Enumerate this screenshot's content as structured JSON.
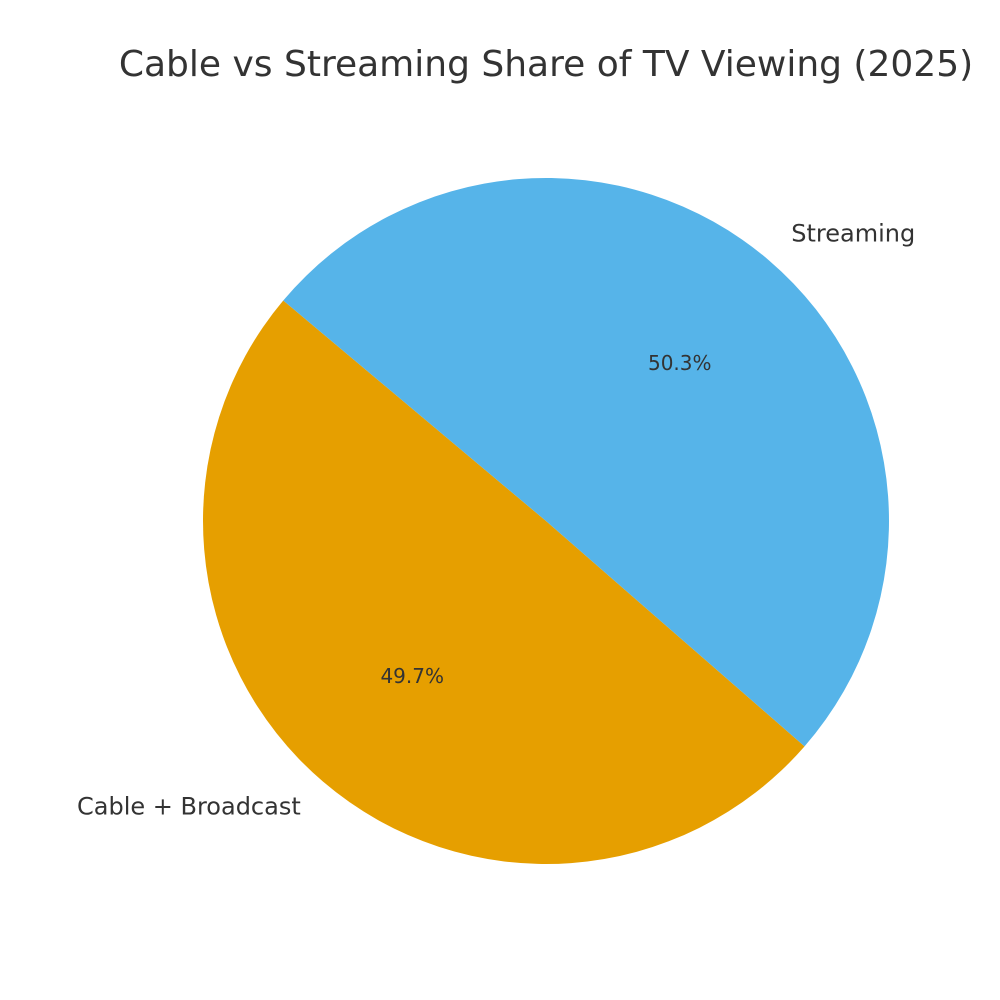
{
  "chart_data": {
    "type": "pie",
    "title": "Cable vs Streaming Share of TV Viewing (2025)",
    "categories": [
      "Cable + Broadcast",
      "Streaming"
    ],
    "values": [
      49.7,
      50.3
    ],
    "value_labels": [
      "49.7%",
      "50.3%"
    ],
    "colors": [
      "#E69F00",
      "#56B4E9"
    ]
  }
}
